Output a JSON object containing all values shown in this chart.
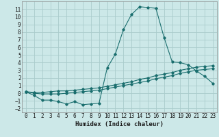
{
  "xlabel": "Humidex (Indice chaleur)",
  "background_color": "#cce8e8",
  "grid_color": "#aacccc",
  "line_color": "#1a6e6e",
  "xlim": [
    -0.5,
    23.5
  ],
  "ylim": [
    -2.5,
    12.0
  ],
  "xticks": [
    0,
    1,
    2,
    3,
    4,
    5,
    6,
    7,
    8,
    9,
    10,
    11,
    12,
    13,
    14,
    15,
    16,
    17,
    18,
    19,
    20,
    21,
    22,
    23
  ],
  "yticks": [
    -2,
    -1,
    0,
    1,
    2,
    3,
    4,
    5,
    6,
    7,
    8,
    9,
    10,
    11
  ],
  "series": [
    {
      "x": [
        0,
        1,
        2,
        3,
        4,
        5,
        6,
        7,
        8,
        9,
        10,
        11,
        12,
        13,
        14,
        15,
        16,
        17,
        18,
        19,
        20,
        21,
        22,
        23
      ],
      "y": [
        0.2,
        -0.3,
        -0.9,
        -0.9,
        -1.1,
        -1.4,
        -1.1,
        -1.5,
        -1.4,
        -1.3,
        3.3,
        5.1,
        8.3,
        10.3,
        11.3,
        11.2,
        11.1,
        7.3,
        4.1,
        4.0,
        3.7,
        2.9,
        2.2,
        1.3
      ]
    },
    {
      "x": [
        0,
        1,
        2,
        3,
        4,
        5,
        6,
        7,
        8,
        9,
        10,
        11,
        12,
        13,
        14,
        15,
        16,
        17,
        18,
        19,
        20,
        21,
        22,
        23
      ],
      "y": [
        0.2,
        0.1,
        0.1,
        0.2,
        0.3,
        0.3,
        0.4,
        0.5,
        0.6,
        0.7,
        0.9,
        1.1,
        1.3,
        1.5,
        1.8,
        2.0,
        2.3,
        2.5,
        2.7,
        3.0,
        3.2,
        3.4,
        3.5,
        3.6
      ]
    },
    {
      "x": [
        0,
        1,
        2,
        3,
        4,
        5,
        6,
        7,
        8,
        9,
        10,
        11,
        12,
        13,
        14,
        15,
        16,
        17,
        18,
        19,
        20,
        21,
        22,
        23
      ],
      "y": [
        0.2,
        0.0,
        -0.1,
        -0.1,
        -0.1,
        0.0,
        0.1,
        0.2,
        0.3,
        0.4,
        0.6,
        0.8,
        1.0,
        1.2,
        1.4,
        1.6,
        1.9,
        2.1,
        2.3,
        2.6,
        2.8,
        3.0,
        3.1,
        3.2
      ]
    }
  ]
}
